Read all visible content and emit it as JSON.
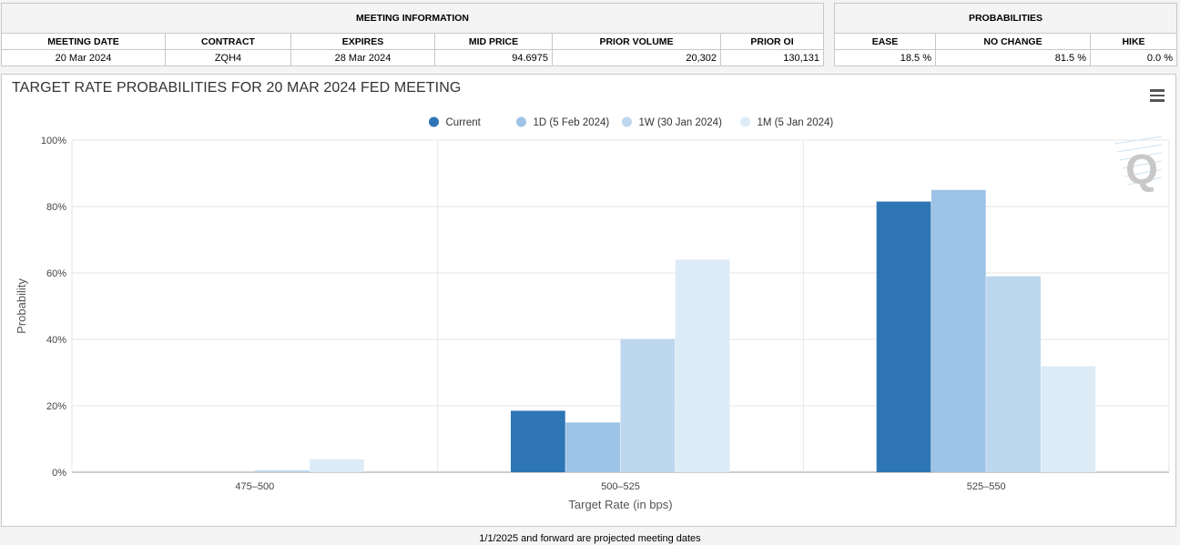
{
  "meeting_info": {
    "title": "MEETING INFORMATION",
    "headers": [
      "MEETING DATE",
      "CONTRACT",
      "EXPIRES",
      "MID PRICE",
      "PRIOR VOLUME",
      "PRIOR OI"
    ],
    "values": [
      "20 Mar 2024",
      "ZQH4",
      "28 Mar 2024",
      "94.6975",
      "20,302",
      "130,131"
    ]
  },
  "probabilities": {
    "title": "PROBABILITIES",
    "headers": [
      "EASE",
      "NO CHANGE",
      "HIKE"
    ],
    "values": [
      "18.5 %",
      "81.5 %",
      "0.0 %"
    ]
  },
  "footer_note": "1/1/2025 and forward are projected meeting dates",
  "colors": {
    "current": "#2e75b6",
    "d1": "#9dc3e6",
    "w1": "#bdd7ee",
    "m1": "#ddebf7",
    "grid": "#e6e6e6",
    "axis": "#999999"
  },
  "chart_data": {
    "type": "bar",
    "title": "TARGET RATE PROBABILITIES FOR 20 MAR 2024 FED MEETING",
    "xlabel": "Target Rate (in bps)",
    "ylabel": "Probability",
    "ylim": [
      0,
      100
    ],
    "yticks": [
      "0%",
      "20%",
      "40%",
      "60%",
      "80%",
      "100%"
    ],
    "categories": [
      "475-500",
      "500-525",
      "525-550"
    ],
    "legend_position": "top-center",
    "series": [
      {
        "name": "Current",
        "values": [
          0.0,
          18.5,
          81.5
        ]
      },
      {
        "name": "1D (5 Feb 2024)",
        "values": [
          0.0,
          15.0,
          85.0
        ]
      },
      {
        "name": "1W (30 Jan 2024)",
        "values": [
          0.6,
          40.1,
          59.0
        ]
      },
      {
        "name": "1M (5 Jan 2024)",
        "values": [
          3.9,
          64.0,
          31.9
        ]
      }
    ]
  }
}
